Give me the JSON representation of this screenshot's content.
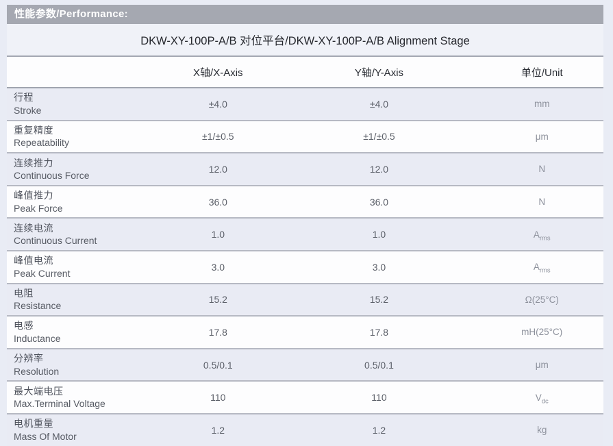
{
  "section": {
    "header": "性能参数/Performance:"
  },
  "table": {
    "title": "DKW-XY-100P-A/B 对位平台/DKW-XY-100P-A/B Alignment Stage",
    "columns": {
      "param": "",
      "x": "X轴/X-Axis",
      "y": "Y轴/Y-Axis",
      "unit": "单位/Unit"
    },
    "rows": [
      {
        "label_cn": "行程",
        "label_en": "Stroke",
        "x": "±4.0",
        "y": "±4.0",
        "unit": "mm",
        "unit_sub": ""
      },
      {
        "label_cn": "重复精度",
        "label_en": "Repeatability",
        "x": "±1/±0.5",
        "y": "±1/±0.5",
        "unit": "μm",
        "unit_sub": ""
      },
      {
        "label_cn": "连续推力",
        "label_en": "Continuous Force",
        "x": "12.0",
        "y": "12.0",
        "unit": "N",
        "unit_sub": ""
      },
      {
        "label_cn": "峰值推力",
        "label_en": "Peak Force",
        "x": "36.0",
        "y": "36.0",
        "unit": "N",
        "unit_sub": ""
      },
      {
        "label_cn": "连续电流",
        "label_en": "Continuous Current",
        "x": "1.0",
        "y": "1.0",
        "unit": "A",
        "unit_sub": "rms"
      },
      {
        "label_cn": "峰值电流",
        "label_en": "Peak Current",
        "x": "3.0",
        "y": "3.0",
        "unit": "A",
        "unit_sub": "rms"
      },
      {
        "label_cn": "电阻",
        "label_en": "Resistance",
        "x": "15.2",
        "y": "15.2",
        "unit": "Ω(25°C)",
        "unit_sub": ""
      },
      {
        "label_cn": "电感",
        "label_en": "Inductance",
        "x": "17.8",
        "y": "17.8",
        "unit": "mH(25°C)",
        "unit_sub": ""
      },
      {
        "label_cn": "分辨率",
        "label_en": "Resolution",
        "x": "0.5/0.1",
        "y": "0.5/0.1",
        "unit": "μm",
        "unit_sub": ""
      },
      {
        "label_cn": "最大端电压",
        "label_en": "Max.Terminal Voltage",
        "x": "110",
        "y": "110",
        "unit": "V",
        "unit_sub": "dc"
      },
      {
        "label_cn": "电机重量",
        "label_en": "Mass Of Motor",
        "x": "1.2",
        "y": "1.2",
        "unit": "kg",
        "unit_sub": ""
      }
    ]
  },
  "colors": {
    "page_background": "#e9ecf5",
    "section_bar": "#a5a8b1",
    "section_bar_text": "#ffffff",
    "row_shaded": "#e9ebf4",
    "row_plain": "#fdfdfe",
    "divider": "#b6b9c3",
    "header_divider": "#a0a4af",
    "unit_text": "#8d919c"
  }
}
